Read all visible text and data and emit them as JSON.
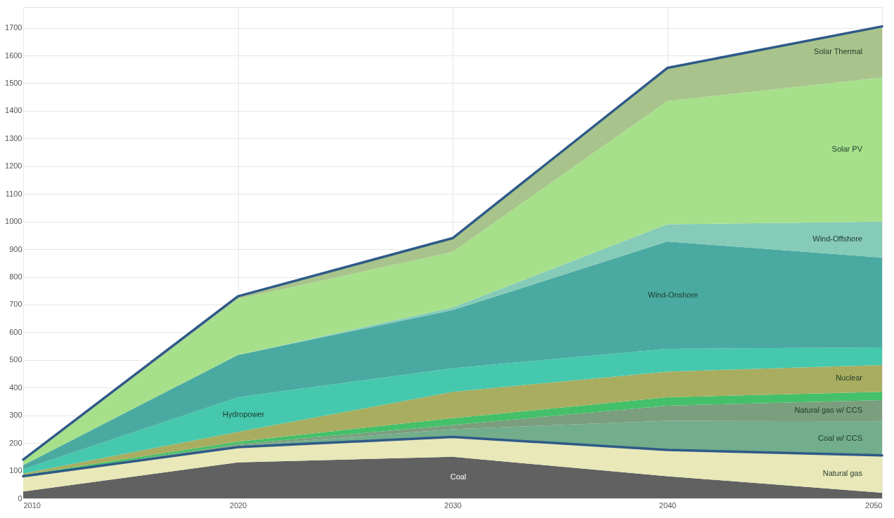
{
  "chart_data": {
    "type": "area",
    "stacked": true,
    "x": [
      2010,
      2020,
      2030,
      2040,
      2050
    ],
    "xlim": [
      2010,
      2050
    ],
    "xticks": [
      2010,
      2020,
      2030,
      2040,
      2050
    ],
    "ylim": [
      0,
      1775
    ],
    "yticks": [
      0,
      100,
      200,
      300,
      400,
      500,
      600,
      700,
      800,
      900,
      1000,
      1100,
      1200,
      1300,
      1400,
      1500,
      1600,
      1700
    ],
    "grid": true,
    "series": [
      {
        "name": "Coal",
        "color": "#616161",
        "values": [
          25,
          130,
          150,
          80,
          20
        ]
      },
      {
        "name": "Natural gas",
        "color": "#e8e8b8",
        "values": [
          55,
          55,
          72,
          95,
          135
        ]
      },
      {
        "name": "Coal w/ CCS",
        "color": "#72ad8c",
        "values": [
          0,
          5,
          28,
          105,
          123
        ]
      },
      {
        "name": "Natural gas w/ CCS",
        "color": "#7a9e7e",
        "values": [
          0,
          5,
          15,
          55,
          77
        ]
      },
      {
        "color": "#45c06a",
        "values": [
          5,
          10,
          25,
          30,
          30
        ]
      },
      {
        "name": "Nuclear",
        "color": "#a8ad60",
        "values": [
          5,
          35,
          95,
          93,
          97
        ]
      },
      {
        "name": "Hydropower",
        "color": "#45c8ad",
        "values": [
          15,
          125,
          85,
          82,
          63
        ]
      },
      {
        "name": "Wind-Onshore",
        "color": "#4aaaa2",
        "values": [
          15,
          153,
          210,
          388,
          325
        ]
      },
      {
        "name": "Wind-Offshore",
        "color": "#85cbb8",
        "values": [
          0,
          0,
          10,
          62,
          130
        ]
      },
      {
        "name": "Solar PV",
        "color": "#a6e08a",
        "values": [
          15,
          202,
          200,
          445,
          520
        ]
      },
      {
        "name": "Solar Thermal",
        "color": "#a8c48c",
        "values": [
          5,
          10,
          50,
          120,
          185
        ]
      },
      {
        "type": "line",
        "color": "#2f5a88",
        "values": [
          140,
          730,
          940,
          1555,
          1705
        ]
      },
      {
        "type": "line",
        "color": "#2f5a88",
        "values": [
          80,
          185,
          222,
          175,
          155
        ]
      }
    ]
  }
}
